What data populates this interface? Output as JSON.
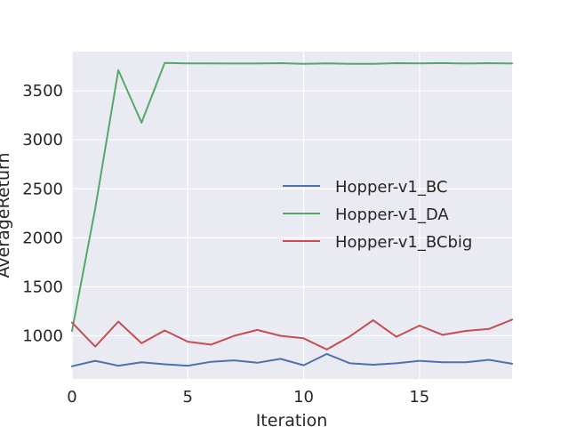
{
  "chart_data": {
    "type": "line",
    "title": "",
    "xlabel": "Iteration",
    "ylabel": "AverageReturn",
    "xlim": [
      0,
      19
    ],
    "ylim": [
      560,
      3900
    ],
    "xticks": [
      0,
      5,
      10,
      15
    ],
    "yticks": [
      1000,
      1500,
      2000,
      2500,
      3000,
      3500
    ],
    "grid": true,
    "legend_position": "center-right",
    "x": [
      0,
      1,
      2,
      3,
      4,
      5,
      6,
      7,
      8,
      9,
      10,
      11,
      12,
      13,
      14,
      15,
      16,
      17,
      18,
      19
    ],
    "series": [
      {
        "name": "Hopper-v1_BC",
        "color": "#4c72b0",
        "values": [
          690,
          745,
          695,
          730,
          710,
          695,
          735,
          750,
          725,
          765,
          700,
          815,
          720,
          705,
          720,
          745,
          730,
          730,
          755,
          715
        ]
      },
      {
        "name": "Hopper-v1_DA",
        "color": "#55a868",
        "values": [
          1050,
          2300,
          3710,
          3175,
          3785,
          3780,
          3780,
          3778,
          3778,
          3782,
          3776,
          3780,
          3776,
          3776,
          3782,
          3780,
          3783,
          3778,
          3782,
          3778
        ]
      },
      {
        "name": "Hopper-v1_BCbig",
        "color": "#c44e52",
        "values": [
          1135,
          890,
          1145,
          925,
          1055,
          940,
          910,
          1000,
          1060,
          1000,
          975,
          860,
          995,
          1160,
          990,
          1105,
          1010,
          1050,
          1070,
          1165
        ]
      }
    ],
    "background": "#eaeaf2",
    "grid_color": "#ffffff"
  }
}
